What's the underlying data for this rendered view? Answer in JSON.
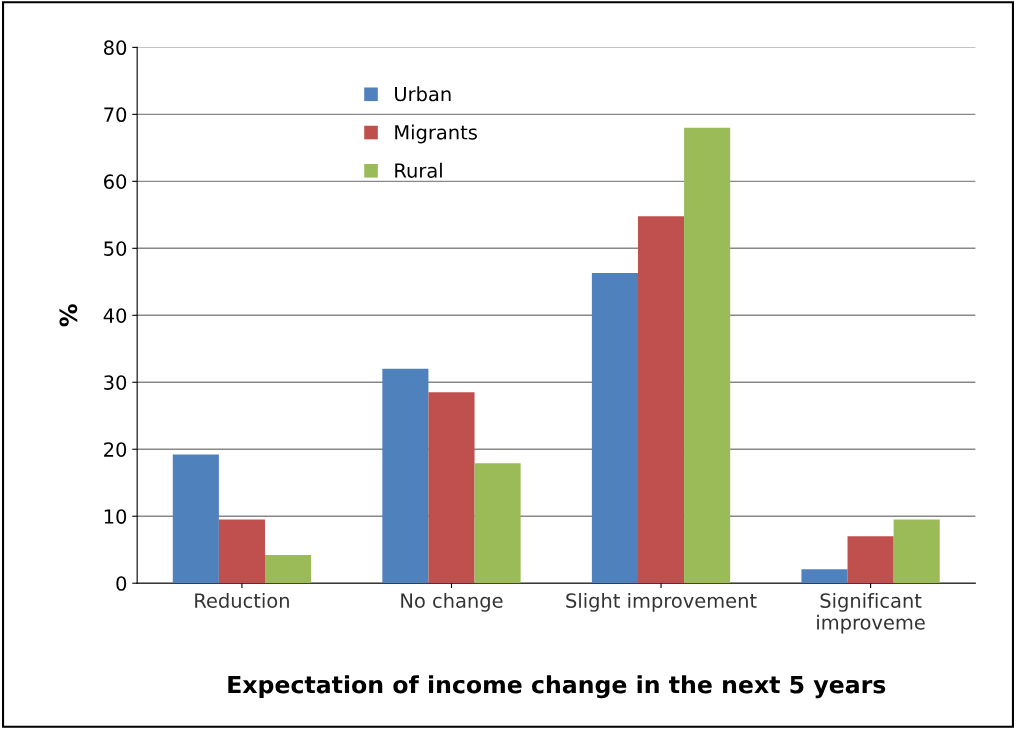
{
  "chart_data": {
    "type": "bar",
    "xlabel": "Expectation of income change in the next 5 years",
    "ylabel": "%",
    "categories": [
      "Reduction",
      "No change",
      "Slight improvement",
      "Significant\nimproveme"
    ],
    "series": [
      {
        "name": "Urban",
        "color": "#4f81bd",
        "values": [
          19.2,
          32.0,
          46.3,
          2.1
        ]
      },
      {
        "name": "Migrants",
        "color": "#c0504d",
        "values": [
          9.5,
          28.5,
          54.8,
          7.0
        ]
      },
      {
        "name": "Rural",
        "color": "#9bbb59",
        "values": [
          4.2,
          17.9,
          68.0,
          9.5
        ]
      }
    ],
    "ylim": [
      0,
      80
    ],
    "yticks": [
      0,
      10,
      20,
      30,
      40,
      50,
      60,
      70,
      80
    ],
    "grid": "y",
    "legend": "top left"
  }
}
